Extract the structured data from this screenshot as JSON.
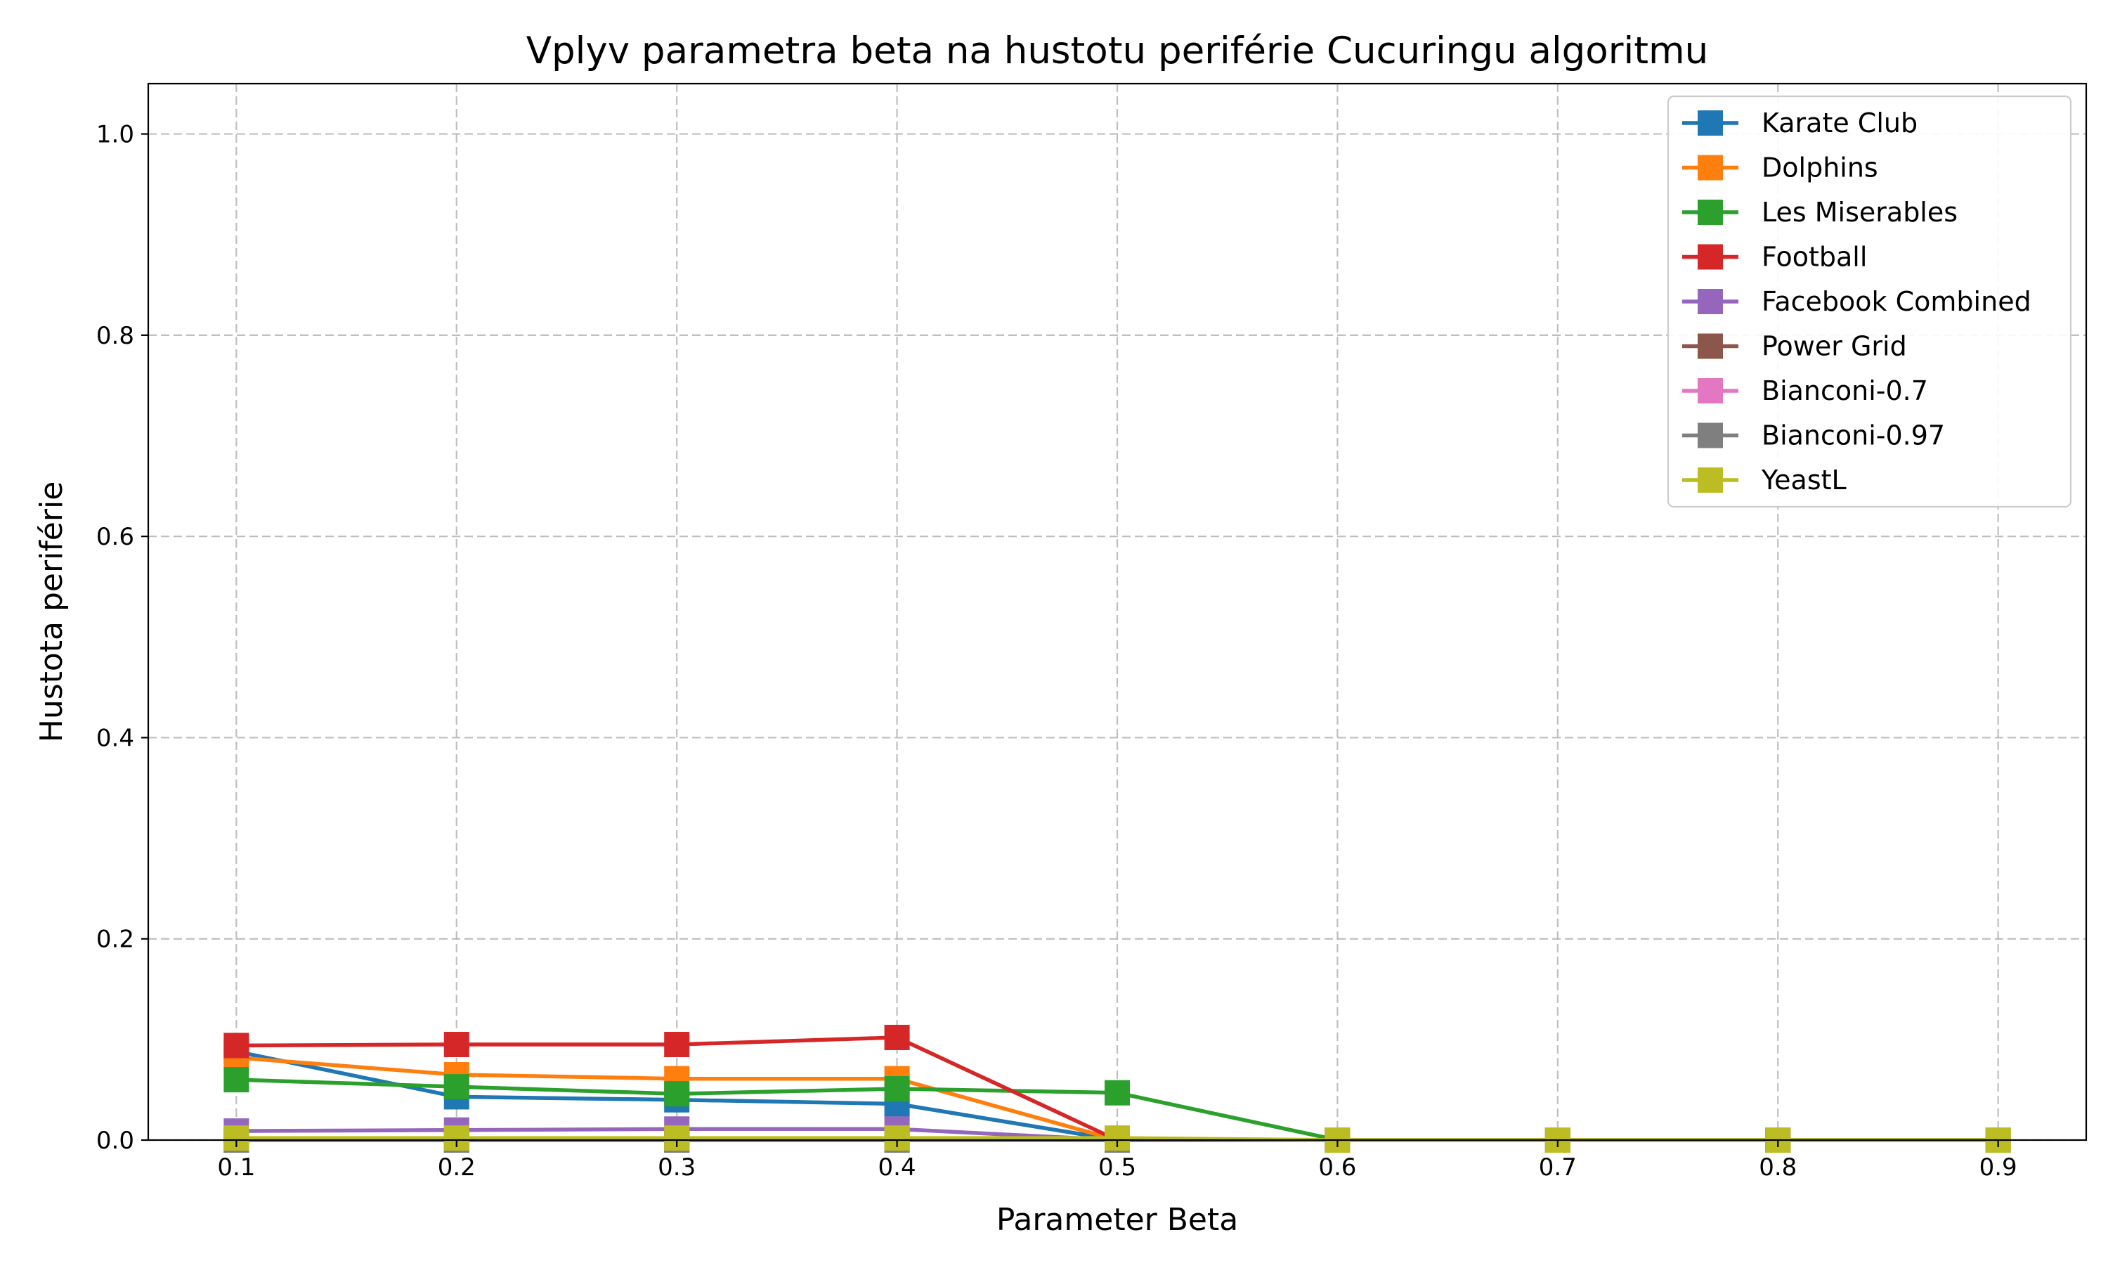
{
  "chart_data": {
    "type": "line",
    "title": "Vplyv parametra beta na hustotu periférie Cucuringu algoritmu",
    "xlabel": "Parameter Beta",
    "ylabel": "Hustota periférie",
    "x": [
      0.1,
      0.2,
      0.3,
      0.4,
      0.5,
      0.6,
      0.7,
      0.8,
      0.9
    ],
    "x_ticks": [
      "0.1",
      "0.2",
      "0.3",
      "0.4",
      "0.5",
      "0.6",
      "0.7",
      "0.8",
      "0.9"
    ],
    "y_ticks": [
      "0.0",
      "0.2",
      "0.4",
      "0.6",
      "0.8",
      "1.0"
    ],
    "xlim": [
      0.06,
      0.94
    ],
    "ylim": [
      0.0,
      1.05
    ],
    "grid": true,
    "legend_position": "top-right",
    "marker": "square",
    "series": [
      {
        "name": "Karate Club",
        "color": "#1f77b4",
        "values": [
          0.088,
          0.043,
          0.04,
          0.036,
          0.0,
          null,
          null,
          null,
          null
        ]
      },
      {
        "name": "Dolphins",
        "color": "#ff7f0e",
        "values": [
          0.082,
          0.065,
          0.061,
          0.061,
          0.0,
          null,
          null,
          null,
          null
        ]
      },
      {
        "name": "Les Miserables",
        "color": "#2ca02c",
        "values": [
          0.06,
          0.053,
          0.046,
          0.051,
          0.047,
          0.0,
          null,
          null,
          null
        ]
      },
      {
        "name": "Football",
        "color": "#d62728",
        "values": [
          0.094,
          0.095,
          0.095,
          0.102,
          0.0,
          null,
          null,
          null,
          null
        ]
      },
      {
        "name": "Facebook Combined",
        "color": "#9467bd",
        "values": [
          0.009,
          0.01,
          0.011,
          0.011,
          0.0,
          null,
          null,
          null,
          null
        ]
      },
      {
        "name": "Power Grid",
        "color": "#8c564b",
        "values": [
          0.0,
          0.0,
          0.0,
          0.0,
          0.0,
          0.0,
          0.0,
          0.0,
          0.0
        ]
      },
      {
        "name": "Bianconi-0.7",
        "color": "#e377c2",
        "values": [
          0.0,
          0.0,
          0.0,
          0.0,
          0.0,
          0.0,
          0.0,
          0.0,
          0.0
        ]
      },
      {
        "name": "Bianconi-0.97",
        "color": "#7f7f7f",
        "values": [
          0.0,
          0.0,
          0.0,
          0.0,
          0.0,
          0.0,
          0.0,
          0.0,
          0.0
        ]
      },
      {
        "name": "YeastL",
        "color": "#bcbd22",
        "values": [
          0.002,
          0.002,
          0.002,
          0.002,
          0.002,
          0.0,
          0.0,
          0.0,
          0.0
        ]
      }
    ]
  }
}
